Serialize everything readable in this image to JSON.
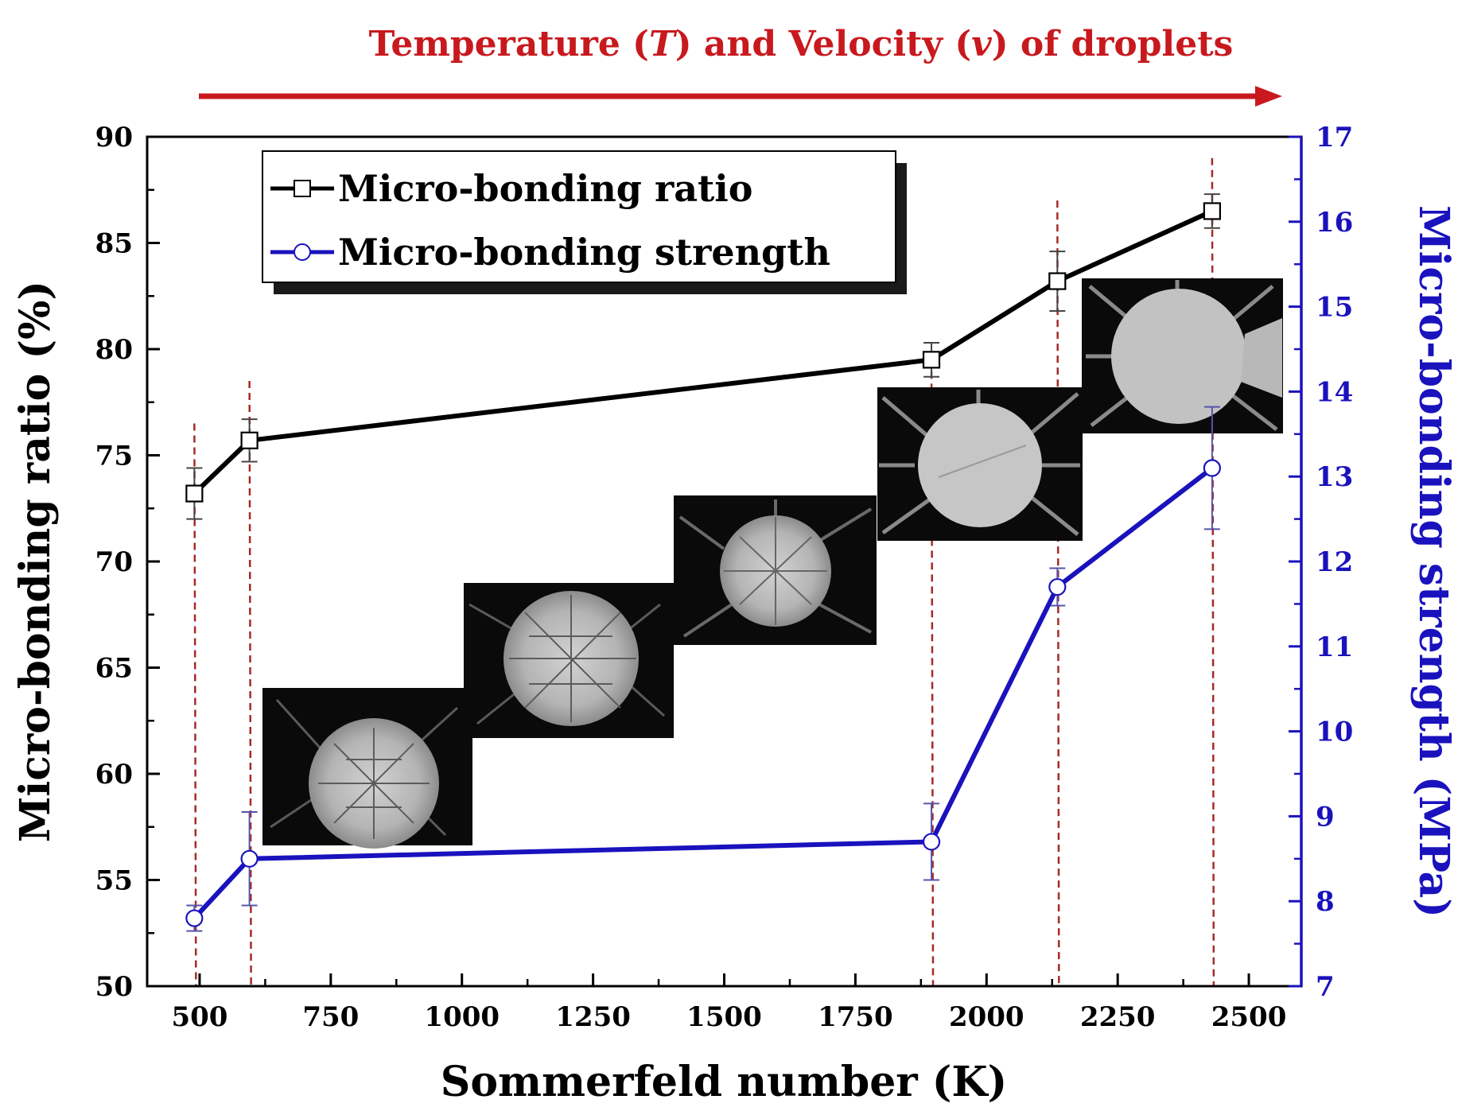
{
  "chart_data": {
    "type": "line",
    "banner": {
      "prefix": "Temperature (",
      "t_symbol": "T",
      "middle": ") and Velocity (",
      "v_symbol": "v",
      "suffix": ") of droplets",
      "color": "#c8191e"
    },
    "xlabel": "Sommerfeld number (K)",
    "ylabel_left": "Micro-bonding ratio (%)",
    "ylabel_right": "Micro-bonding strength (MPa)",
    "xlim": [
      400,
      2600
    ],
    "ylim_left": [
      50,
      90
    ],
    "ylim_right": [
      7,
      17
    ],
    "x_ticks": [
      500,
      750,
      1000,
      1250,
      1500,
      1750,
      2000,
      2250,
      2500
    ],
    "y_ticks_left": [
      50,
      55,
      60,
      65,
      70,
      75,
      80,
      85,
      90
    ],
    "y_ticks_right": [
      7,
      8,
      9,
      10,
      11,
      12,
      13,
      14,
      15,
      16,
      17
    ],
    "x": [
      490,
      595,
      1895,
      2135,
      2430
    ],
    "series": [
      {
        "name": "Micro-bonding ratio",
        "axis": "left",
        "marker": "square",
        "color": "#000000",
        "values": [
          73.2,
          75.7,
          79.5,
          83.2,
          86.5
        ],
        "errors": [
          1.2,
          1.0,
          0.8,
          1.4,
          0.8
        ]
      },
      {
        "name": "Micro-bonding strength",
        "axis": "right",
        "marker": "circle",
        "color": "#1a12bd",
        "values": [
          7.8,
          8.5,
          8.7,
          11.7,
          13.1
        ],
        "errors": [
          0.15,
          0.55,
          0.45,
          0.22,
          0.72
        ]
      }
    ],
    "reference_lines_color": "#a52a2a",
    "grid": false,
    "legend_position": "top-left"
  }
}
